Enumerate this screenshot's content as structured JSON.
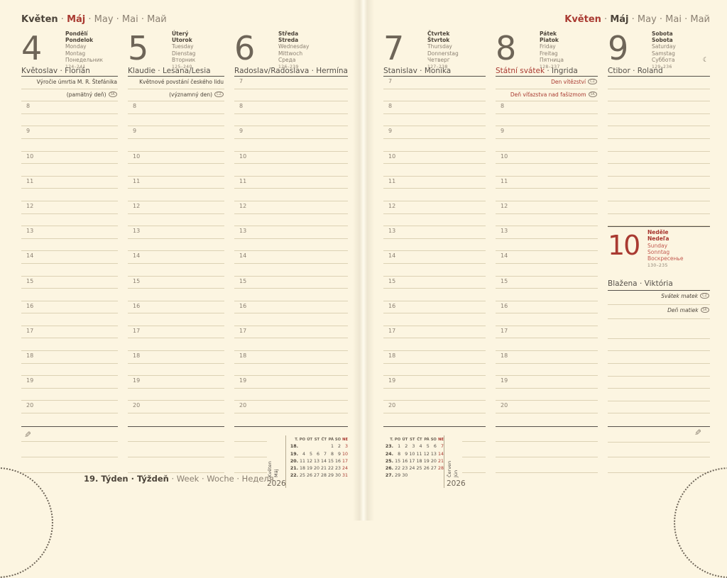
{
  "month_header": {
    "cz": "Květen",
    "sk": "Máj",
    "rest": "May · Mai · Май"
  },
  "footer": {
    "week_bold": "19. Týden · Týždeň",
    "week_rest": " · Week · Woche · Неделя"
  },
  "icons": {
    "pencil": "✎",
    "moon": "☾"
  },
  "days": [
    {
      "num": "4",
      "page": "left",
      "names": [
        "Pondělí",
        "Pondelok",
        "Monday",
        "Montag",
        "Понедельник"
      ],
      "range": "124–241",
      "nameday": [
        {
          "text": "Květoslav · Florián"
        }
      ],
      "notes": [
        {
          "text": "Výročie úmrtia M. R. Štefánika"
        },
        {
          "text": "(pamätný deň)",
          "badge": "SK"
        }
      ],
      "hour_start": 8
    },
    {
      "num": "5",
      "page": "left",
      "names": [
        "Úterý",
        "Utorok",
        "Tuesday",
        "Dienstag",
        "Вторник"
      ],
      "range": "125–240",
      "nameday": [
        {
          "text": "Klaudie · Lesana/Lesia"
        }
      ],
      "notes": [
        {
          "text": "Květnové povstání českého lidu"
        },
        {
          "text": "(významný den)",
          "badge": "CZ"
        }
      ],
      "hour_start": 8
    },
    {
      "num": "6",
      "page": "left",
      "names": [
        "Středa",
        "Streda",
        "Wednesday",
        "Mittwoch",
        "Среда"
      ],
      "range": "126–239",
      "nameday": [
        {
          "text": "Radoslav/Radoslava · Hermína"
        }
      ],
      "notes": [],
      "hour_start": 7
    },
    {
      "num": "7",
      "page": "right",
      "names": [
        "Čtvrtek",
        "Štvrtok",
        "Thursday",
        "Donnerstag",
        "Четверг"
      ],
      "range": "127–238",
      "nameday": [
        {
          "text": "Stanislav · Monika"
        }
      ],
      "notes": [],
      "hour_start": 7
    },
    {
      "num": "8",
      "page": "right",
      "names": [
        "Pátek",
        "Piatok",
        "Friday",
        "Freitag",
        "Пятница"
      ],
      "range": "128–237",
      "nameday": [
        {
          "text": "Státní svátek",
          "red": true
        },
        {
          "text": " · Ingrida"
        }
      ],
      "notes": [
        {
          "text": "Den vítězství",
          "badge": "CZ",
          "red": true
        },
        {
          "text": "Deň víťazstva nad fašizmom",
          "badge": "SK",
          "red": true
        }
      ],
      "hour_start": 8
    },
    {
      "num": "9",
      "page": "right",
      "names": [
        "Sobota",
        "Sobota",
        "Saturday",
        "Samstag",
        "Суббота"
      ],
      "range": "129–236",
      "moon": true,
      "nameday": [
        {
          "text": "Ctibor · Roland"
        }
      ],
      "notes": [],
      "no_numbers": true,
      "lines_before_sunday": 12,
      "lines_after_sunday": 8
    }
  ],
  "sunday": {
    "num": "10",
    "names": [
      "Neděle",
      "Nedeľa",
      "Sunday",
      "Sonntag",
      "Воскресенье"
    ],
    "range": "130–235",
    "nameday": [
      {
        "text": "Blažena · Viktória"
      }
    ],
    "notes": [
      {
        "text": "Svátek matek",
        "badge": "CZ",
        "italic": true
      },
      {
        "text": "Deň matiek",
        "badge": "SK",
        "italic": true
      }
    ]
  },
  "mini_calendars": [
    {
      "page": "left",
      "label": [
        "Květen",
        "Máj"
      ],
      "year": "2026",
      "wk_header": "T.",
      "weekday_header": [
        "PO",
        "ÚT",
        "ST",
        "ČT",
        "PÁ",
        "SO",
        "NE"
      ],
      "rows": [
        {
          "week": "18.",
          "days": [
            "",
            "",
            "",
            "",
            "1",
            "2",
            "3"
          ]
        },
        {
          "week": "19.",
          "days": [
            "4",
            "5",
            "6",
            "7",
            "8",
            "9",
            "10"
          ]
        },
        {
          "week": "20.",
          "days": [
            "11",
            "12",
            "13",
            "14",
            "15",
            "16",
            "17"
          ]
        },
        {
          "week": "21.",
          "days": [
            "18",
            "19",
            "20",
            "21",
            "22",
            "23",
            "24"
          ]
        },
        {
          "week": "22.",
          "days": [
            "25",
            "26",
            "27",
            "28",
            "29",
            "30",
            "31"
          ]
        }
      ]
    },
    {
      "page": "right",
      "label": [
        "Červen",
        "Jún"
      ],
      "year": "2026",
      "wk_header": "T.",
      "weekday_header": [
        "PO",
        "ÚT",
        "ST",
        "ČT",
        "PÁ",
        "SO",
        "NE"
      ],
      "rows": [
        {
          "week": "23.",
          "days": [
            "1",
            "2",
            "3",
            "4",
            "5",
            "6",
            "7"
          ]
        },
        {
          "week": "24.",
          "days": [
            "8",
            "9",
            "10",
            "11",
            "12",
            "13",
            "14"
          ]
        },
        {
          "week": "25.",
          "days": [
            "15",
            "16",
            "17",
            "18",
            "19",
            "20",
            "21"
          ]
        },
        {
          "week": "26.",
          "days": [
            "22",
            "23",
            "24",
            "25",
            "26",
            "27",
            "28"
          ]
        },
        {
          "week": "27.",
          "days": [
            "29",
            "30",
            "",
            "",
            "",
            "",
            ""
          ]
        }
      ]
    }
  ]
}
